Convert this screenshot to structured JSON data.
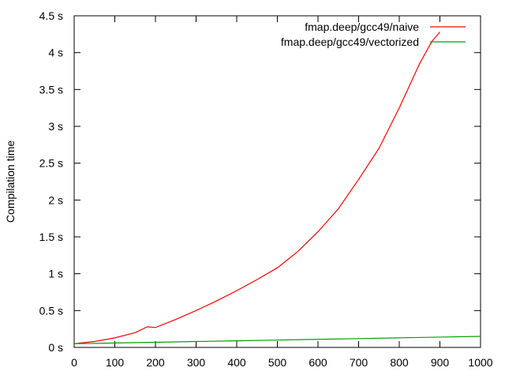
{
  "chart_data": {
    "type": "line",
    "title": "",
    "xlabel": "",
    "ylabel": "Compilation time",
    "xlim": [
      0,
      1000
    ],
    "ylim": [
      0,
      4.5
    ],
    "x_ticks": [
      "0",
      "100",
      "200",
      "300",
      "400",
      "500",
      "600",
      "700",
      "800",
      "900",
      "1000"
    ],
    "y_ticks": [
      "0 s",
      "0.5 s",
      "1 s",
      "1.5 s",
      "2 s",
      "2.5 s",
      "3 s",
      "3.5 s",
      "4 s",
      "4.5 s"
    ],
    "grid": false,
    "legend_position": "top-right",
    "series": [
      {
        "name": "fmap.deep/gcc49/naive",
        "color": "#ff0000",
        "x": [
          0,
          50,
          100,
          150,
          180,
          200,
          250,
          300,
          350,
          400,
          450,
          500,
          550,
          600,
          650,
          700,
          750,
          800,
          850,
          880,
          900
        ],
        "y": [
          0.05,
          0.08,
          0.13,
          0.2,
          0.28,
          0.27,
          0.38,
          0.5,
          0.63,
          0.77,
          0.92,
          1.08,
          1.3,
          1.57,
          1.88,
          2.28,
          2.7,
          3.25,
          3.85,
          4.15,
          4.28
        ]
      },
      {
        "name": "fmap.deep/gcc49/vectorized",
        "color": "#00a000",
        "x": [
          0,
          100,
          200,
          300,
          400,
          500,
          600,
          700,
          800,
          900,
          1000
        ],
        "y": [
          0.05,
          0.06,
          0.07,
          0.08,
          0.09,
          0.1,
          0.11,
          0.12,
          0.13,
          0.14,
          0.15
        ]
      }
    ]
  }
}
